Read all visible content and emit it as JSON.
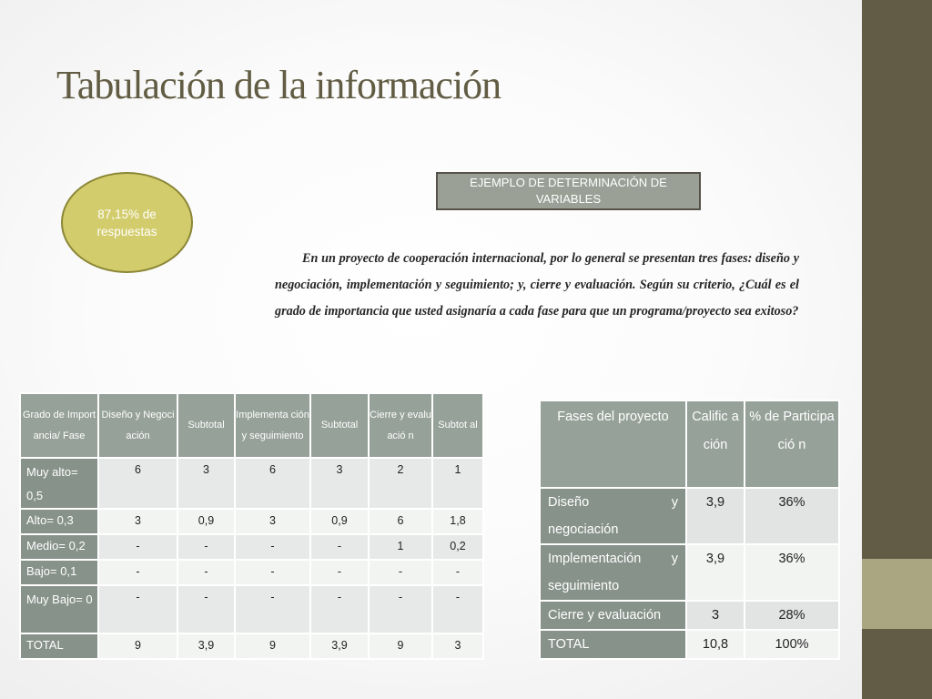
{
  "title": "Tabulación de la información",
  "response_rate": "87,15% de respuestas",
  "example_label": "EJEMPLO DE  DETERMINACIÓN DE VARIABLES",
  "question": "En un proyecto de cooperación internacional, por lo general se presentan tres fases: diseño y negociación,  implementación y seguimiento; y,  cierre y evaluación.  Según su criterio, ¿Cuál es el grado de importancia que usted asignaría a cada fase para que un programa/proyecto sea exitoso?",
  "colors": {
    "sidebar": "#625c47",
    "sidebar_accent": "#a9a681",
    "ellipse": "#d3cc6c",
    "table_header": "#96a19a"
  },
  "importance_table": {
    "headers": [
      "Grado de Importancia/ Fase",
      "Diseño y Negociación",
      "Subtotal",
      "Implementa ción y seguimiento",
      "Subtotal",
      "Cierre y evaluació n",
      "Subtot al"
    ],
    "rows": [
      {
        "label": "Muy   alto= 0,5",
        "cells": [
          "6",
          "3",
          "6",
          "3",
          "2",
          "1"
        ]
      },
      {
        "label": "Alto= 0,3",
        "cells": [
          "3",
          "0,9",
          "3",
          "0,9",
          "6",
          "1,8"
        ]
      },
      {
        "label": "Medio= 0,2",
        "cells": [
          "-",
          "-",
          "-",
          "-",
          "1",
          "0,2"
        ]
      },
      {
        "label": "Bajo= 0,1",
        "cells": [
          "-",
          "-",
          "-",
          "-",
          "-",
          "-"
        ]
      },
      {
        "label": "Muy   Bajo= 0",
        "cells": [
          "-",
          "-",
          "-",
          "-",
          "-",
          "-"
        ]
      },
      {
        "label": "TOTAL",
        "cells": [
          "9",
          "3,9",
          "9",
          "3,9",
          "9",
          "3"
        ]
      }
    ]
  },
  "phases_table": {
    "headers": [
      "Fases del proyecto",
      "Calific ación",
      "% de Participació n"
    ],
    "rows": [
      {
        "label_a": "Diseño",
        "label_b": "y",
        "label_c": "negociación",
        "rating": "3,9",
        "percent": "36%"
      },
      {
        "label_a": "Implementación",
        "label_b": "y",
        "label_c": "seguimiento",
        "rating": "3,9",
        "percent": "36%"
      },
      {
        "label": "Cierre y evaluación",
        "rating": "3",
        "percent": "28%"
      },
      {
        "label": "TOTAL",
        "rating": "10,8",
        "percent": "100%"
      }
    ]
  }
}
